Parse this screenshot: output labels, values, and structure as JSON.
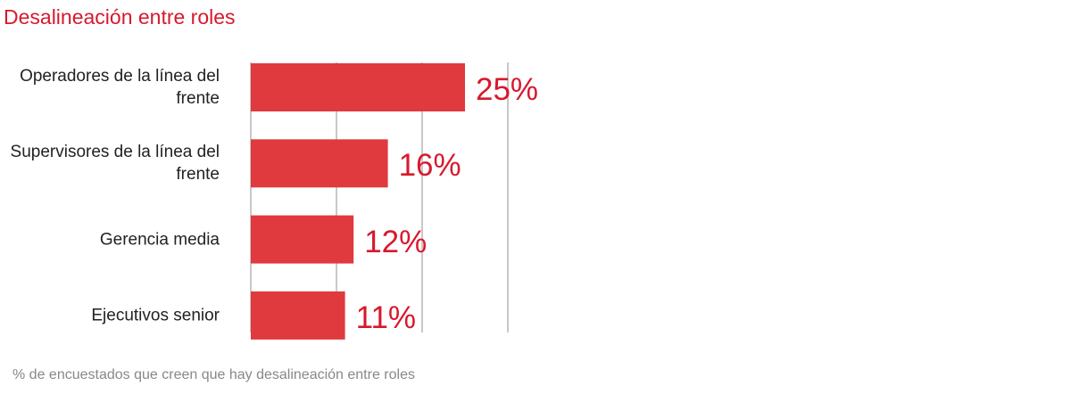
{
  "chart_data": {
    "type": "barh",
    "title": "Desalineación entre roles",
    "categories": [
      "Operadores de la línea del frente",
      "Supervisores de la línea del frente",
      "Gerencia media",
      "Ejecutivos senior"
    ],
    "values": [
      25,
      16,
      12,
      11
    ],
    "value_labels": [
      "25%",
      "16%",
      "12%",
      "11%"
    ],
    "color": "#e03a3e",
    "xlim": [
      0,
      30
    ],
    "xticks": [
      0,
      10,
      20,
      30
    ],
    "grid": true,
    "note": "% de encuestados que creen que hay desalineación entre roles"
  }
}
